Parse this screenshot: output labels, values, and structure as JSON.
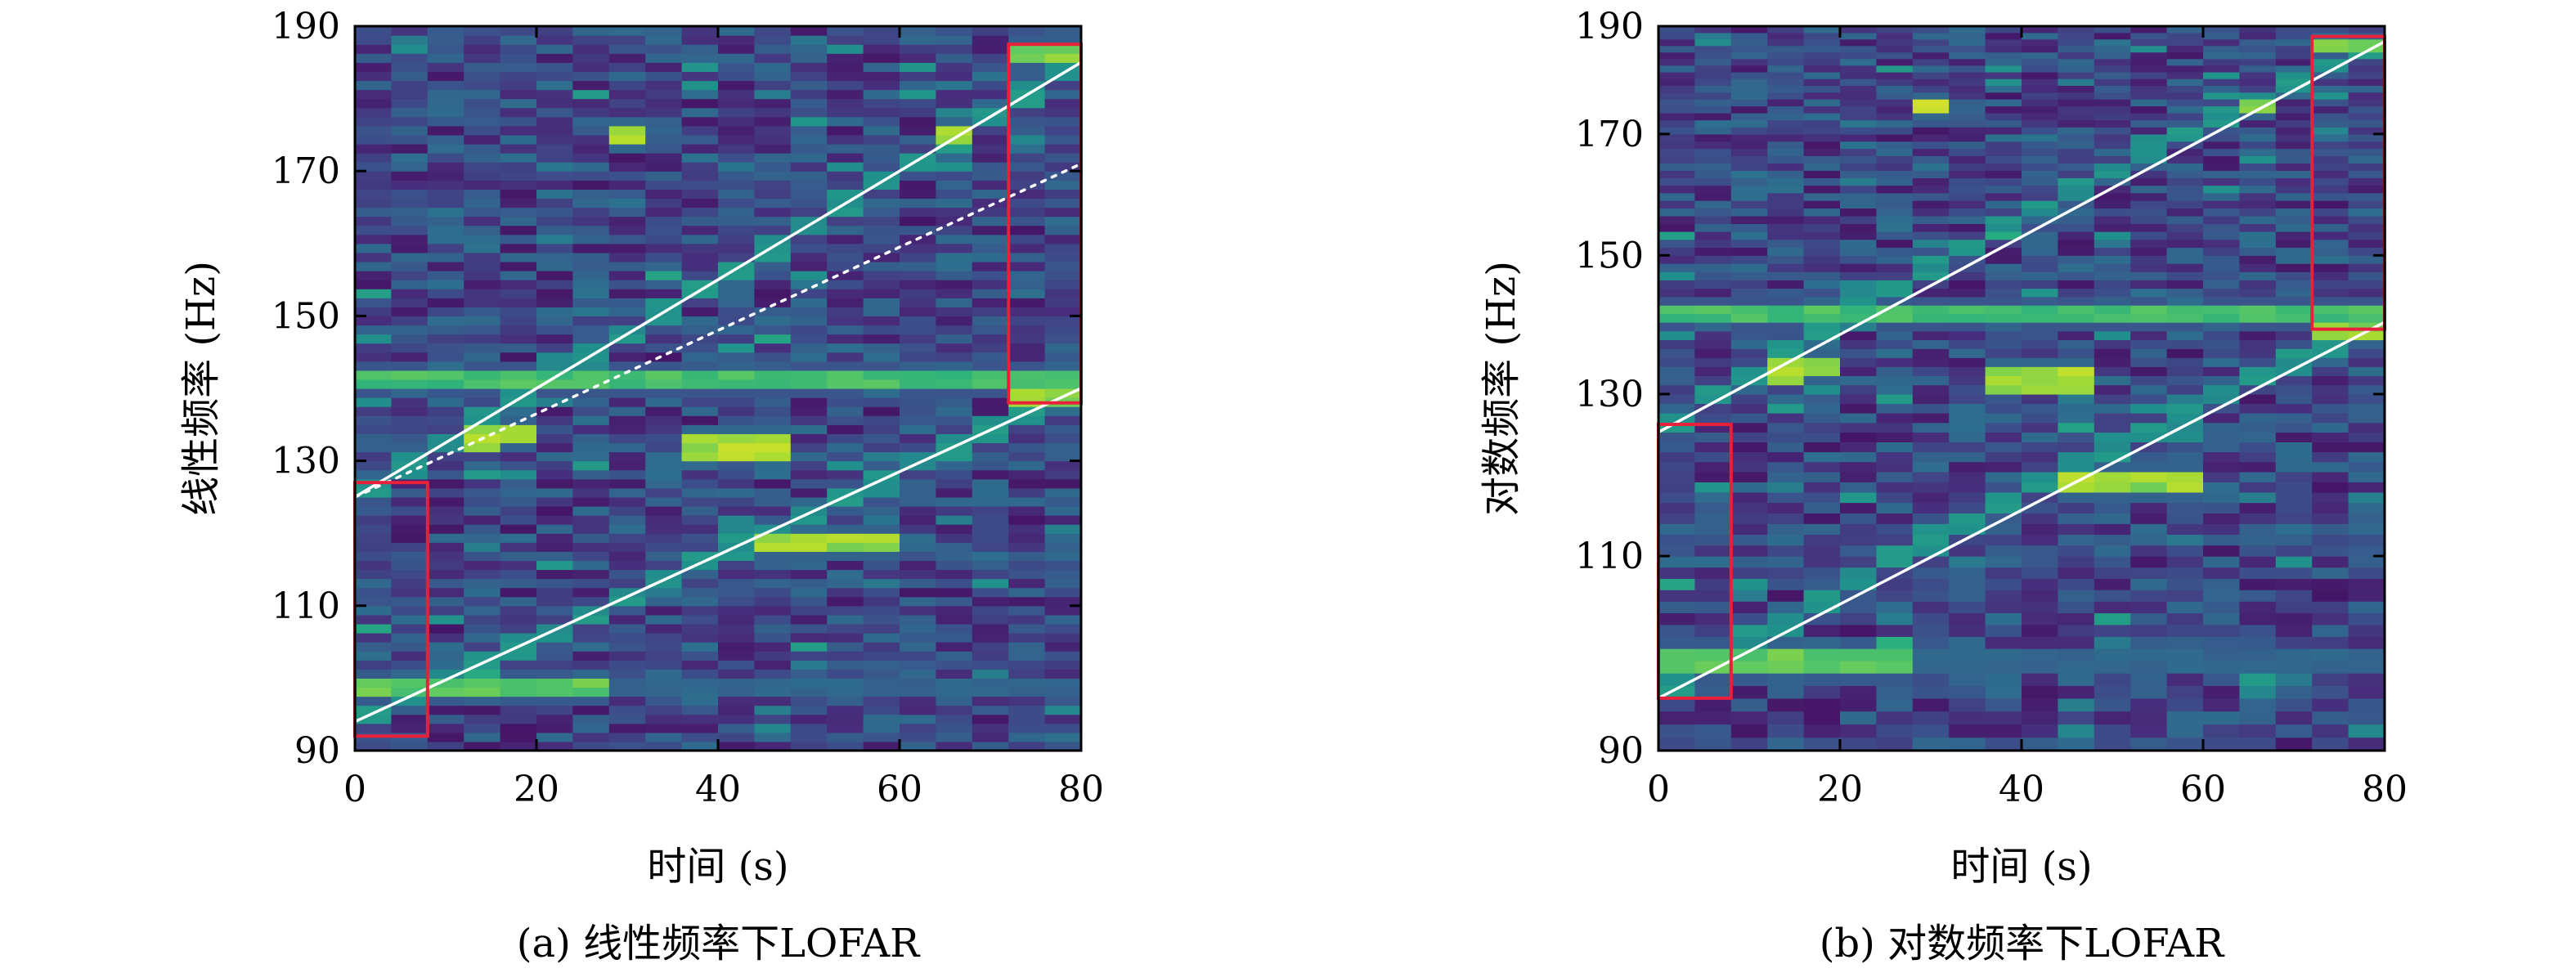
{
  "colors": {
    "background": "#440154",
    "guide_line": "#ffffff",
    "highlight_box": "#e8203a",
    "colormap": [
      "#440154",
      "#472d7b",
      "#3b528b",
      "#2c728e",
      "#21918c",
      "#28ae80",
      "#5ec962",
      "#addc30",
      "#fde725"
    ]
  },
  "chart_data": [
    {
      "type": "heatmap",
      "caption": "(a) 线性频率下LOFAR",
      "xlabel": "时间 (s)",
      "ylabel": "线性频率 (Hz)",
      "xlim": [
        0,
        80
      ],
      "ylim": [
        90,
        190
      ],
      "y_scale": "linear",
      "xticks": [
        "0",
        "20",
        "40",
        "60",
        "80"
      ],
      "yticks": [
        "90",
        "110",
        "130",
        "150",
        "170",
        "190"
      ],
      "xtick_values": [
        0,
        20,
        40,
        60,
        80
      ],
      "ytick_values": [
        90,
        110,
        130,
        150,
        170,
        190
      ],
      "time_step_s": 4,
      "guide_lines": [
        {
          "style": "solid",
          "x": [
            0,
            80
          ],
          "y": [
            125,
            185
          ]
        },
        {
          "style": "dotted",
          "x": [
            0,
            80
          ],
          "y": [
            125,
            171
          ]
        },
        {
          "style": "solid",
          "x": [
            0,
            80
          ],
          "y": [
            94,
            140
          ]
        }
      ],
      "boxes": [
        {
          "x": [
            0,
            8
          ],
          "y": [
            92,
            127
          ]
        },
        {
          "x": [
            72,
            80
          ],
          "y": [
            138,
            187.5
          ]
        }
      ],
      "tracks": [
        {
          "x": [
            0,
            80
          ],
          "f0": 141,
          "f1": 141,
          "intensity": 0.75
        },
        {
          "x": [
            0,
            28
          ],
          "f0": 99,
          "f1": 99,
          "intensity": 0.8
        },
        {
          "x": [
            0,
            80
          ],
          "f0": 99,
          "f1": 99,
          "intensity": 0.35
        },
        {
          "x": [
            36,
            48
          ],
          "f0": 132,
          "f1": 132,
          "intensity": 0.95
        },
        {
          "x": [
            44,
            60
          ],
          "f0": 119,
          "f1": 119,
          "intensity": 0.9
        },
        {
          "x": [
            0,
            80
          ],
          "f0": 94,
          "f1": 140,
          "intensity": 0.55
        },
        {
          "x": [
            0,
            80
          ],
          "f0": 125,
          "f1": 185,
          "intensity": 0.55
        },
        {
          "x": [
            12,
            20
          ],
          "f0": 133,
          "f1": 134,
          "intensity": 0.9
        },
        {
          "x": [
            28,
            32
          ],
          "f0": 175,
          "f1": 175,
          "intensity": 0.95
        },
        {
          "x": [
            64,
            68
          ],
          "f0": 175,
          "f1": 175,
          "intensity": 0.9
        },
        {
          "x": [
            72,
            80
          ],
          "f0": 138.5,
          "f1": 138.5,
          "intensity": 0.9
        },
        {
          "x": [
            72,
            80
          ],
          "f0": 186,
          "f1": 186,
          "intensity": 0.85
        }
      ]
    },
    {
      "type": "heatmap",
      "caption": "(b) 对数频率下LOFAR",
      "xlabel": "时间 (s)",
      "ylabel": "对数频率 (Hz)",
      "xlim": [
        0,
        80
      ],
      "ylim": [
        90,
        190
      ],
      "y_scale": "log",
      "xticks": [
        "0",
        "20",
        "40",
        "60",
        "80"
      ],
      "yticks": [
        "90",
        "110",
        "130",
        "150",
        "170",
        "190"
      ],
      "xtick_values": [
        0,
        20,
        40,
        60,
        80
      ],
      "ytick_values": [
        90,
        110,
        130,
        150,
        170,
        190
      ],
      "time_step_s": 4,
      "guide_lines": [
        {
          "style": "solid",
          "x": [
            0,
            80
          ],
          "y": [
            125,
            187
          ]
        },
        {
          "style": "solid",
          "x": [
            0,
            80
          ],
          "y": [
            95,
            140
          ]
        }
      ],
      "boxes": [
        {
          "x": [
            0,
            8
          ],
          "y": [
            95,
            126
          ]
        },
        {
          "x": [
            72,
            80
          ],
          "y": [
            139,
            188
          ]
        }
      ],
      "tracks": [
        {
          "x": [
            0,
            80
          ],
          "f0": 141,
          "f1": 141,
          "intensity": 0.75
        },
        {
          "x": [
            0,
            28
          ],
          "f0": 99,
          "f1": 99,
          "intensity": 0.8
        },
        {
          "x": [
            0,
            80
          ],
          "f0": 99,
          "f1": 99,
          "intensity": 0.35
        },
        {
          "x": [
            36,
            48
          ],
          "f0": 132,
          "f1": 132,
          "intensity": 0.95
        },
        {
          "x": [
            44,
            60
          ],
          "f0": 119,
          "f1": 119,
          "intensity": 0.9
        },
        {
          "x": [
            0,
            80
          ],
          "f0": 95,
          "f1": 140,
          "intensity": 0.55
        },
        {
          "x": [
            0,
            80
          ],
          "f0": 125,
          "f1": 187,
          "intensity": 0.55
        },
        {
          "x": [
            12,
            20
          ],
          "f0": 133,
          "f1": 134,
          "intensity": 0.9
        },
        {
          "x": [
            28,
            32
          ],
          "f0": 175,
          "f1": 175,
          "intensity": 0.95
        },
        {
          "x": [
            64,
            68
          ],
          "f0": 175,
          "f1": 175,
          "intensity": 0.9
        },
        {
          "x": [
            72,
            80
          ],
          "f0": 138.5,
          "f1": 138.5,
          "intensity": 0.9
        },
        {
          "x": [
            72,
            80
          ],
          "f0": 186,
          "f1": 186,
          "intensity": 0.85
        }
      ]
    }
  ]
}
